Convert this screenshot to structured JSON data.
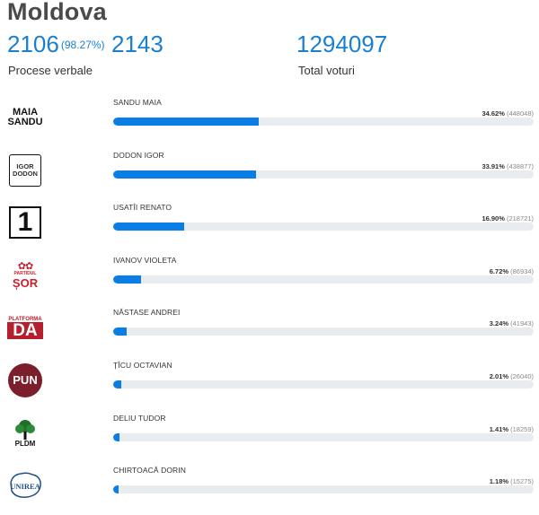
{
  "header": {
    "title": "Moldova",
    "processed_count": "2106",
    "processed_pct": "(98.27%)",
    "processed_total": "2143",
    "processed_label": "Procese verbale",
    "votes_total": "1294097",
    "votes_label": "Total voturi"
  },
  "colors": {
    "accent": "#1a7fd1",
    "bar": "#0b7ee6",
    "track": "#e9ecef"
  },
  "candidates": [
    {
      "name": "SANDU MAIA",
      "pct": "34.62%",
      "votes": "(448048)",
      "share": 34.62,
      "logo": "maia-sandu-logo",
      "logo_text": [
        "MAIA",
        "SANDU"
      ]
    },
    {
      "name": "DODON IGOR",
      "pct": "33.91%",
      "votes": "(438877)",
      "share": 33.91,
      "logo": "igor-dodon-logo",
      "logo_text": [
        "IGOR",
        "DODON"
      ]
    },
    {
      "name": "USATÎI RENATO",
      "pct": "16.90%",
      "votes": "(218721)",
      "share": 16.9,
      "logo": "partidul-nostru-logo",
      "logo_text": [
        "1"
      ]
    },
    {
      "name": "IVANOV VIOLETA",
      "pct": "6.72%",
      "votes": "(86934)",
      "share": 6.72,
      "logo": "partidul-sor-logo",
      "logo_text": [
        "PARTIDUL",
        "ȘOR"
      ]
    },
    {
      "name": "NĂSTASE ANDREI",
      "pct": "3.24%",
      "votes": "(41943)",
      "share": 3.24,
      "logo": "platforma-da-logo",
      "logo_text": [
        "PLATFORMA",
        "DA"
      ]
    },
    {
      "name": "ȚÎCU OCTAVIAN",
      "pct": "2.01%",
      "votes": "(26040)",
      "share": 2.01,
      "logo": "pun-logo",
      "logo_text": [
        "PUN"
      ]
    },
    {
      "name": "DELIU TUDOR",
      "pct": "1.41%",
      "votes": "(18259)",
      "share": 1.41,
      "logo": "pldm-logo",
      "logo_text": [
        "PLDM"
      ]
    },
    {
      "name": "CHIRTOACĂ DORIN",
      "pct": "1.18%",
      "votes": "(15275)",
      "share": 1.18,
      "logo": "unirea-logo",
      "logo_text": [
        "UNIREA"
      ]
    }
  ]
}
